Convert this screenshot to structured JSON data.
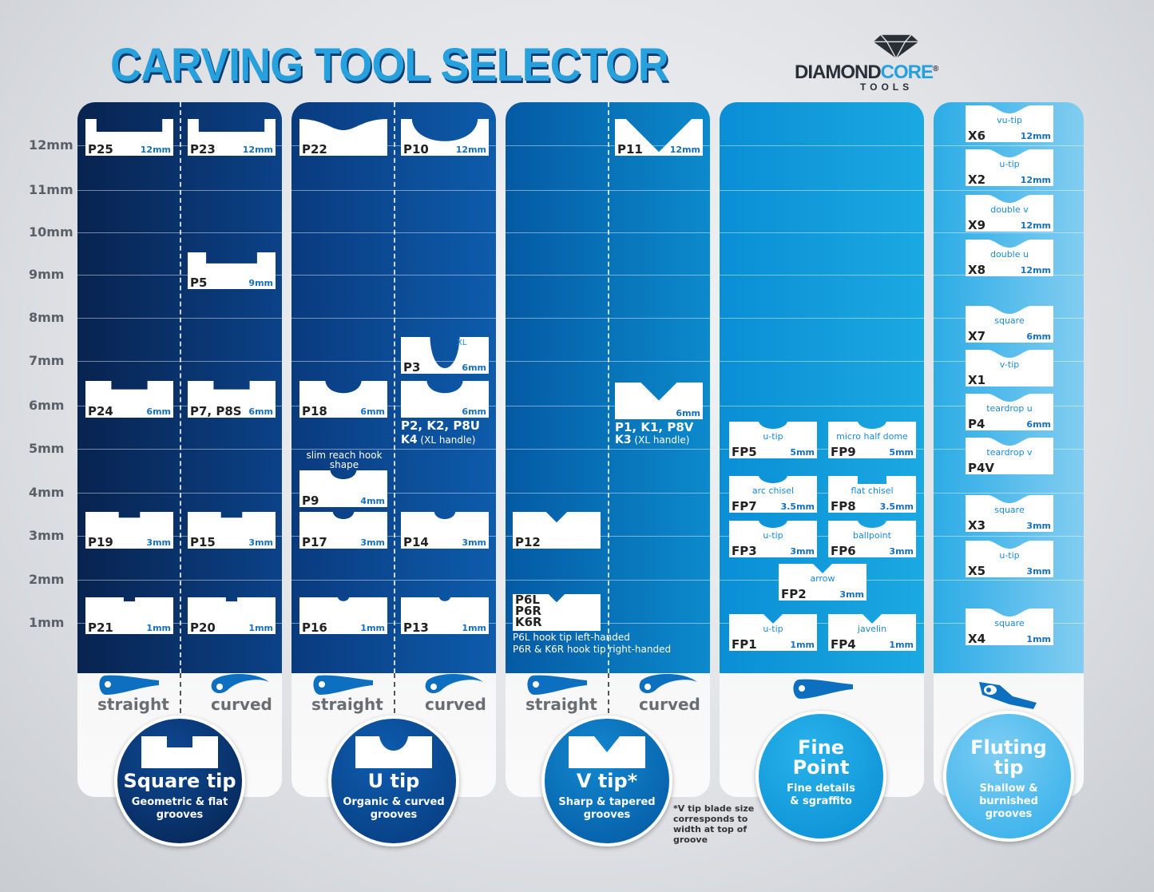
{
  "title": "CARVING TOOL SELECTOR",
  "logo": {
    "word_a": "DIAMOND",
    "word_b": "CORE",
    "reg": "®",
    "sub": "TOOLS"
  },
  "colors": {
    "title": "#27a1de",
    "square": "#0a2a5c",
    "u": "#0b4a94",
    "v": "#0668b3",
    "fine": "#119ad9",
    "flute": "#45b7ea"
  },
  "mm_labels": [
    "12mm",
    "11mm",
    "10mm",
    "9mm",
    "8mm",
    "7mm",
    "6mm",
    "5mm",
    "4mm",
    "3mm",
    "2mm",
    "1mm"
  ],
  "handles": {
    "straight": "straight",
    "curved": "curved"
  },
  "columns": [
    {
      "title": "Square tip",
      "subtitle": "Geometric & flat grooves"
    },
    {
      "title": "U tip",
      "subtitle": "Organic & curved grooves"
    },
    {
      "title": "V tip*",
      "subtitle": "Sharp & tapered grooves"
    },
    {
      "title": "Fine Point",
      "subtitle": "Fine details & sgraffito"
    },
    {
      "title": "Fluting tip",
      "subtitle": "Shallow & burnished grooves"
    }
  ],
  "cards": [
    {
      "code": "P25",
      "size": "12mm",
      "profile": "square",
      "mm": 12
    },
    {
      "code": "P24",
      "size": "6mm",
      "profile": "square",
      "mm": 6
    },
    {
      "code": "P19",
      "size": "3mm",
      "profile": "square",
      "mm": 3
    },
    {
      "code": "P21",
      "size": "1mm",
      "profile": "square",
      "mm": 1
    },
    {
      "code": "P23",
      "size": "12mm",
      "profile": "square",
      "mm": 12
    },
    {
      "code": "P5",
      "size": "9mm",
      "profile": "square",
      "mm": 9
    },
    {
      "code": "P7, P8S",
      "size": "6mm",
      "profile": "square",
      "mm": 6
    },
    {
      "code": "P15",
      "size": "3mm",
      "profile": "square",
      "mm": 3
    },
    {
      "code": "P20",
      "size": "1mm",
      "profile": "square",
      "mm": 1
    },
    {
      "code": "P22",
      "size": "",
      "profile": "shallow",
      "mm": 12
    },
    {
      "code": "P18",
      "size": "6mm",
      "profile": "u",
      "mm": 6
    },
    {
      "code": "P9",
      "size": "4mm",
      "profile": "u",
      "mm": 4
    },
    {
      "code": "P17",
      "size": "3mm",
      "profile": "u",
      "mm": 3
    },
    {
      "code": "P16",
      "size": "1mm",
      "profile": "u",
      "mm": 1
    },
    {
      "code": "P10",
      "size": "12mm",
      "profile": "u",
      "mm": 12
    },
    {
      "code": "P3",
      "size": "6mm",
      "profile": "deepu",
      "mm": 6,
      "label": "XL"
    },
    {
      "code": "P2, K2, P8U",
      "size": "6mm",
      "profile": "u",
      "mm": 6
    },
    {
      "code": "P14",
      "size": "3mm",
      "profile": "u",
      "mm": 3
    },
    {
      "code": "P13",
      "size": "1mm",
      "profile": "u",
      "mm": 1
    },
    {
      "code": "P12",
      "size": "",
      "profile": "v",
      "mm": 3
    },
    {
      "code": "P6L\nP6R\nK6R",
      "size": "",
      "profile": "v",
      "mm": 2
    },
    {
      "code": "P11",
      "size": "12mm",
      "profile": "v",
      "mm": 12
    },
    {
      "code": "P1, K1, P8V",
      "size": "6mm",
      "profile": "v",
      "mm": 6
    },
    {
      "code": "FP5",
      "size": "5mm",
      "profile": "fu",
      "label": "u-tip",
      "mm": 5
    },
    {
      "code": "FP9",
      "size": "5mm",
      "profile": "fu",
      "label": "micro half dome",
      "mm": 5
    },
    {
      "code": "FP7",
      "size": "3.5mm",
      "profile": "fu",
      "label": "arc chisel",
      "mm": 3.5
    },
    {
      "code": "FP8",
      "size": "3.5mm",
      "profile": "fsq",
      "label": "flat chisel",
      "mm": 3.5
    },
    {
      "code": "FP3",
      "size": "3mm",
      "profile": "fu",
      "label": "u-tip",
      "mm": 3
    },
    {
      "code": "FP6",
      "size": "3mm",
      "profile": "fu",
      "label": "ballpoint",
      "mm": 3
    },
    {
      "code": "FP2",
      "size": "3mm",
      "profile": "fv",
      "label": "arrow",
      "mm": 3
    },
    {
      "code": "FP1",
      "size": "1mm",
      "profile": "fv",
      "label": "u-tip",
      "mm": 1
    },
    {
      "code": "FP4",
      "size": "1mm",
      "profile": "fv",
      "label": "javelin",
      "mm": 1
    },
    {
      "code": "X6",
      "size": "12mm",
      "profile": "flute",
      "label": "vu-tip",
      "mm": 12
    },
    {
      "code": "X2",
      "size": "12mm",
      "profile": "flute",
      "label": "u-tip",
      "mm": 12
    },
    {
      "code": "X9",
      "size": "12mm",
      "profile": "flute",
      "label": "double v",
      "mm": 12
    },
    {
      "code": "X8",
      "size": "12mm",
      "profile": "flute",
      "label": "double u",
      "mm": 12
    },
    {
      "code": "X7",
      "size": "6mm",
      "profile": "flute",
      "label": "square",
      "mm": 6
    },
    {
      "code": "X1",
      "size": "",
      "profile": "flute",
      "label": "v-tip",
      "mm": 6
    },
    {
      "code": "P4",
      "size": "6mm",
      "profile": "flute",
      "label": "teardrop u",
      "mm": 6
    },
    {
      "code": "P4V",
      "size": "",
      "profile": "flute",
      "label": "teardrop v",
      "mm": 6
    },
    {
      "code": "X3",
      "size": "3mm",
      "profile": "flute",
      "label": "square",
      "mm": 3
    },
    {
      "code": "X5",
      "size": "3mm",
      "profile": "flute",
      "label": "u-tip",
      "mm": 3
    },
    {
      "code": "X4",
      "size": "1mm",
      "profile": "flute",
      "label": "square",
      "mm": 1
    }
  ],
  "notes": {
    "p9": "slim reach hook shape",
    "k4": "K4",
    "k4_sub": "(XL handle)",
    "k3": "K3",
    "k3_sub": "(XL handle)",
    "p6_1": "P6L hook tip left-handed",
    "p6_2": "P6R & K6R hook tip right-handed"
  },
  "footnote": "*V tip blade size corresponds to width at top of groove"
}
